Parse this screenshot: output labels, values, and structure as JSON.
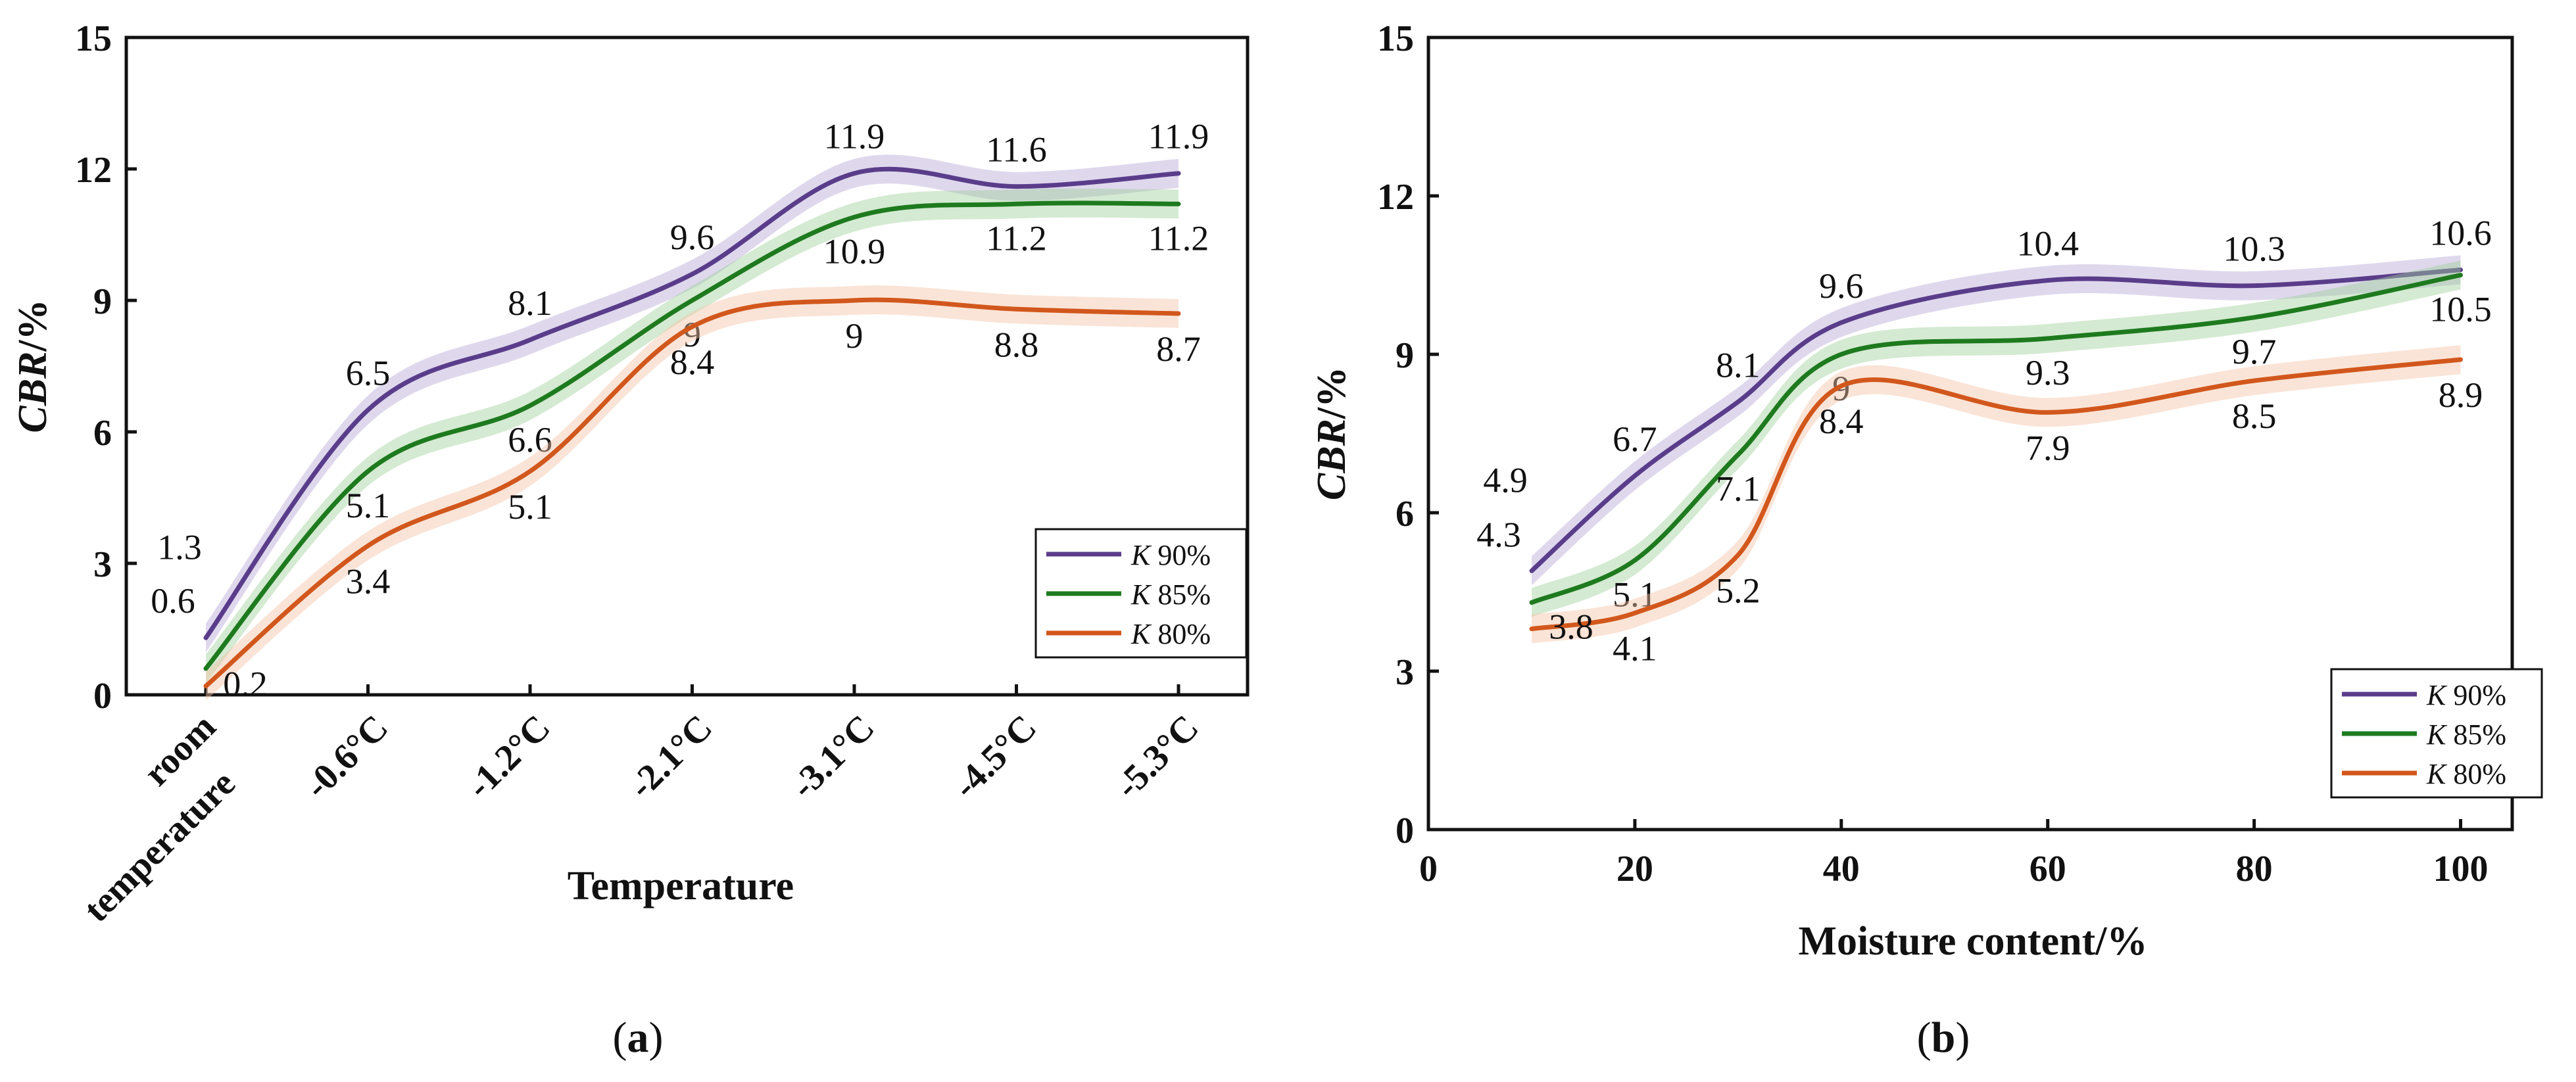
{
  "chart_data": [
    {
      "panel": "(a)",
      "panel_label": {
        "open": "(",
        "letter": "a",
        "close": ")"
      },
      "type": "line",
      "title": "",
      "xlabel": "Temperature",
      "ylabel": {
        "main": "CBR",
        "unit": "/%"
      },
      "ylim": [
        0,
        15
      ],
      "yticks": [
        "0",
        "3",
        "6",
        "9",
        "12",
        "15"
      ],
      "categories": [
        {
          "line1": "room",
          "line2": "temperature"
        },
        {
          "line1": "-0.6°C",
          "line2": ""
        },
        {
          "line1": "-1.2°C",
          "line2": ""
        },
        {
          "line1": "-2.1°C",
          "line2": ""
        },
        {
          "line1": "-3.1°C",
          "line2": ""
        },
        {
          "line1": "-4.5°C",
          "line2": ""
        },
        {
          "line1": "-5.3°C",
          "line2": ""
        }
      ],
      "legend_position": "bottom-right",
      "series": [
        {
          "name": "K 90%",
          "k": "K",
          "pct": "90%",
          "color": "#5a3d8a",
          "band": "#b9a9d6",
          "values": [
            1.3,
            6.5,
            8.1,
            9.6,
            11.9,
            11.6,
            11.9
          ],
          "labels": [
            "1.3",
            "6.5",
            "8.1",
            "9.6",
            "11.9",
            "11.6",
            "11.9"
          ]
        },
        {
          "name": "K 85%",
          "k": "K",
          "pct": "85%",
          "color": "#1e7a1e",
          "band": "#9fd19b",
          "values": [
            0.6,
            5.1,
            6.6,
            9.0,
            10.9,
            11.2,
            11.2
          ],
          "labels": [
            "0.6",
            "5.1",
            "6.6",
            "9",
            "10.9",
            "11.2",
            "11.2"
          ]
        },
        {
          "name": "K 80%",
          "k": "K",
          "pct": "80%",
          "color": "#d2571c",
          "band": "#f5c4a6",
          "values": [
            0.2,
            3.4,
            5.1,
            8.4,
            9.0,
            8.8,
            8.7
          ],
          "labels": [
            "0.2",
            "3.4",
            "5.1",
            "8.4",
            "9",
            "8.8",
            "8.7"
          ]
        }
      ]
    },
    {
      "panel": "(b)",
      "panel_label": {
        "open": "(",
        "letter": "b",
        "close": ")"
      },
      "type": "line",
      "title": "",
      "xlabel": "Moisture content/%",
      "ylabel": {
        "main": "CBR",
        "unit": "/%"
      },
      "xlim": [
        0,
        105
      ],
      "ylim": [
        0,
        15
      ],
      "xticks": [
        "0",
        "20",
        "40",
        "60",
        "80",
        "100"
      ],
      "yticks": [
        "0",
        "3",
        "6",
        "9",
        "12",
        "15"
      ],
      "x": [
        10,
        20,
        30,
        40,
        60,
        80,
        100
      ],
      "legend_position": "bottom-right",
      "series": [
        {
          "name": "K 90%",
          "k": "K",
          "pct": "90%",
          "color": "#5a3d8a",
          "band": "#b9a9d6",
          "values": [
            4.9,
            6.7,
            8.1,
            9.6,
            10.4,
            10.3,
            10.6
          ],
          "labels": [
            "4.9",
            "6.7",
            "8.1",
            "9.6",
            "10.4",
            "10.3",
            "10.6"
          ]
        },
        {
          "name": "K 85%",
          "k": "K",
          "pct": "85%",
          "color": "#1e7a1e",
          "band": "#9fd19b",
          "values": [
            4.3,
            5.1,
            7.1,
            9.0,
            9.3,
            9.7,
            10.5
          ],
          "labels": [
            "4.3",
            "5.1",
            "7.1",
            "9",
            "9.3",
            "9.7",
            "10.5"
          ]
        },
        {
          "name": "K 80%",
          "k": "K",
          "pct": "80%",
          "color": "#d2571c",
          "band": "#f5c4a6",
          "values": [
            3.8,
            4.1,
            5.2,
            8.4,
            7.9,
            8.5,
            8.9
          ],
          "labels": [
            "3.8",
            "4.1",
            "5.2",
            "8.4",
            "7.9",
            "8.5",
            "8.9"
          ]
        }
      ]
    }
  ]
}
